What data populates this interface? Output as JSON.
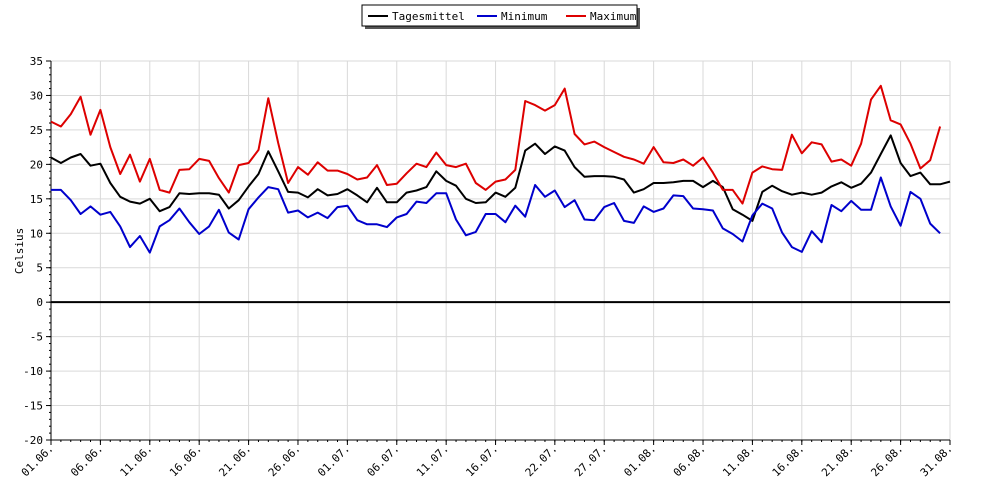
{
  "chart_data": {
    "type": "line",
    "title": "",
    "xlabel": "",
    "ylabel": "Celsius",
    "ylim": [
      -20,
      35
    ],
    "yticks": [
      35,
      30,
      25,
      20,
      15,
      10,
      5,
      0,
      -5,
      -10,
      -15,
      -20
    ],
    "grid": true,
    "legend_position": "top-center",
    "x_tick_labels": [
      "01.06.",
      "06.06.",
      "11.06.",
      "16.06.",
      "21.06.",
      "26.06.",
      "01.07.",
      "06.07.",
      "11.07.",
      "16.07.",
      "22.07.",
      "27.07.",
      "01.08.",
      "06.08.",
      "11.08.",
      "16.08.",
      "21.08.",
      "26.08.",
      "31.08."
    ],
    "x_tick_day_index": [
      0,
      5,
      10,
      15,
      20,
      25,
      30,
      35,
      40,
      45,
      51,
      56,
      61,
      66,
      71,
      76,
      81,
      86,
      91
    ],
    "series": [
      {
        "name": "Tagesmittel",
        "color": "#000000",
        "values": [
          21,
          20.2,
          21,
          21.5,
          19.8,
          20.1,
          17.3,
          15.3,
          14.6,
          14.3,
          15,
          13.2,
          13.8,
          15.8,
          15.7,
          15.8,
          15.8,
          15.6,
          13.6,
          14.8,
          16.8,
          18.6,
          21.9,
          19,
          16,
          15.9,
          15.2,
          16.4,
          15.5,
          15.7,
          16.4,
          15.5,
          14.5,
          16.6,
          14.5,
          14.5,
          15.9,
          16.2,
          16.7,
          19,
          17.6,
          16.9,
          15,
          14.4,
          14.5,
          15.9,
          15.3,
          16.6,
          22,
          23,
          21.5,
          22.6,
          22,
          19.6,
          18.2,
          18.3,
          18.3,
          18.2,
          17.8,
          15.9,
          16.4,
          17.3,
          17.3,
          17.4,
          17.6,
          17.6,
          16.7,
          17.6,
          16.7,
          13.5,
          12.7,
          11.8,
          16,
          16.9,
          16.1,
          15.6,
          15.9,
          15.6,
          15.9,
          16.8,
          17.4,
          16.6,
          17.2,
          18.8,
          21.5,
          24.2,
          20.2,
          18.3,
          18.8,
          17.1,
          17.1,
          17.5
        ]
      },
      {
        "name": "Minimum",
        "color": "#0000cc",
        "values": [
          16.3,
          16.3,
          14.8,
          12.8,
          13.9,
          12.7,
          13.1,
          11,
          8,
          9.6,
          7.2,
          11,
          11.9,
          13.6,
          11.6,
          9.9,
          11,
          13.4,
          10.1,
          9.1,
          13.5,
          15.2,
          16.7,
          16.4,
          13,
          13.3,
          12.3,
          13,
          12.2,
          13.8,
          14,
          11.9,
          11.3,
          11.3,
          10.9,
          12.3,
          12.8,
          14.6,
          14.4,
          15.8,
          15.8,
          12,
          9.7,
          10.2,
          12.8,
          12.8,
          11.6,
          14,
          12.4,
          17,
          15.3,
          16.2,
          13.8,
          14.8,
          12,
          11.9,
          13.8,
          14.4,
          11.8,
          11.5,
          13.9,
          13.1,
          13.6,
          15.5,
          15.4,
          13.6,
          13.5,
          13.3,
          10.7,
          9.9,
          8.8,
          12.6,
          14.3,
          13.6,
          10.1,
          8,
          7.3,
          10.3,
          8.7,
          14.1,
          13.2,
          14.7,
          13.4,
          13.4,
          18.1,
          13.9,
          11.1,
          16,
          15,
          11.4,
          10
        ]
      },
      {
        "name": "Maximum",
        "color": "#dd0000",
        "values": [
          26.2,
          25.5,
          27.3,
          29.8,
          24.3,
          27.9,
          22.5,
          18.6,
          21.4,
          17.5,
          20.8,
          16.3,
          15.9,
          19.2,
          19.3,
          20.8,
          20.5,
          18,
          15.9,
          19.9,
          20.2,
          22.1,
          29.6,
          23.1,
          17.3,
          19.6,
          18.5,
          20.3,
          19.1,
          19.1,
          18.6,
          17.8,
          18.1,
          19.9,
          17,
          17.2,
          18.7,
          20.1,
          19.6,
          21.7,
          19.9,
          19.6,
          20.1,
          17.3,
          16.3,
          17.5,
          17.8,
          19.2,
          29.2,
          28.6,
          27.8,
          28.6,
          31,
          24.4,
          22.9,
          23.3,
          22.5,
          21.8,
          21.1,
          20.7,
          20.1,
          22.5,
          20.3,
          20.2,
          20.7,
          19.8,
          21,
          18.8,
          16.3,
          16.3,
          14.3,
          18.8,
          19.7,
          19.3,
          19.2,
          24.3,
          21.6,
          23.2,
          22.9,
          20.4,
          20.7,
          19.8,
          23,
          29.4,
          31.4,
          26.4,
          25.8,
          23,
          19.4,
          20.6,
          25.5
        ]
      }
    ]
  }
}
